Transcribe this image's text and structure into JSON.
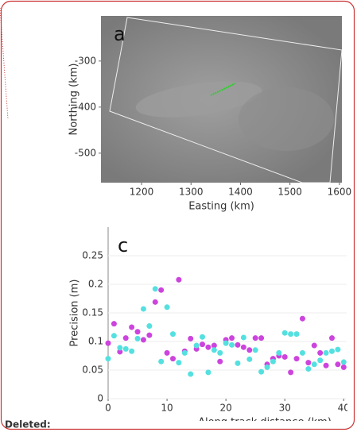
{
  "chart_data": [
    {
      "type": "image",
      "panel_label": "a",
      "xlabel": "Easting (km)",
      "ylabel": "Northing (km)",
      "xlim": [
        1118,
        1605
      ],
      "ylim": [
        -564,
        -202
      ],
      "xticks": [
        1200,
        1300,
        1400,
        1500,
        1600
      ],
      "yticks": [
        -500,
        -400,
        -300
      ]
    },
    {
      "type": "scatter",
      "panel_label": "c",
      "xlabel": "Along track distance (km)",
      "ylabel": "Precision (m)",
      "xlim": [
        0,
        40.5
      ],
      "ylim": [
        0,
        0.3
      ],
      "xticks": [
        0,
        10,
        20,
        30,
        40
      ],
      "yticks": [
        0,
        0.05,
        0.1,
        0.15,
        0.2,
        0.25
      ],
      "grid": true,
      "x": [
        0,
        1,
        2,
        3,
        4,
        5,
        6,
        7,
        8,
        9,
        10,
        11,
        12,
        13,
        14,
        15,
        16,
        17,
        18,
        19,
        20,
        21,
        22,
        23,
        24,
        25,
        26,
        27,
        28,
        29,
        30,
        31,
        32,
        33,
        34,
        35,
        36,
        37,
        38,
        39,
        40
      ],
      "series": [
        {
          "color": "#cc44dd",
          "values": [
            0.097,
            0.131,
            0.082,
            0.106,
            0.125,
            0.117,
            0.103,
            0.111,
            0.169,
            0.19,
            0.08,
            0.07,
            0.208,
            0.083,
            0.105,
            0.087,
            0.095,
            0.09,
            0.093,
            0.065,
            0.103,
            0.106,
            0.094,
            0.09,
            0.085,
            0.106,
            0.106,
            0.06,
            0.07,
            0.075,
            0.073,
            0.046,
            0.07,
            0.14,
            0.063,
            0.093,
            0.08,
            0.058,
            0.106,
            0.06,
            0.055
          ]
        },
        {
          "color": "#55e0e0",
          "values": [
            0.07,
            0.11,
            0.089,
            0.087,
            0.083,
            0.105,
            0.157,
            0.127,
            0.192,
            0.065,
            0.16,
            0.113,
            0.063,
            0.08,
            0.043,
            0.093,
            0.108,
            0.046,
            0.085,
            0.08,
            0.097,
            0.094,
            0.062,
            0.107,
            0.069,
            0.085,
            0.047,
            0.055,
            0.065,
            0.08,
            0.115,
            0.113,
            0.113,
            0.08,
            0.052,
            0.06,
            0.067,
            0.08,
            0.083,
            0.086,
            0.064
          ]
        }
      ]
    }
  ],
  "note": "Deleted:"
}
